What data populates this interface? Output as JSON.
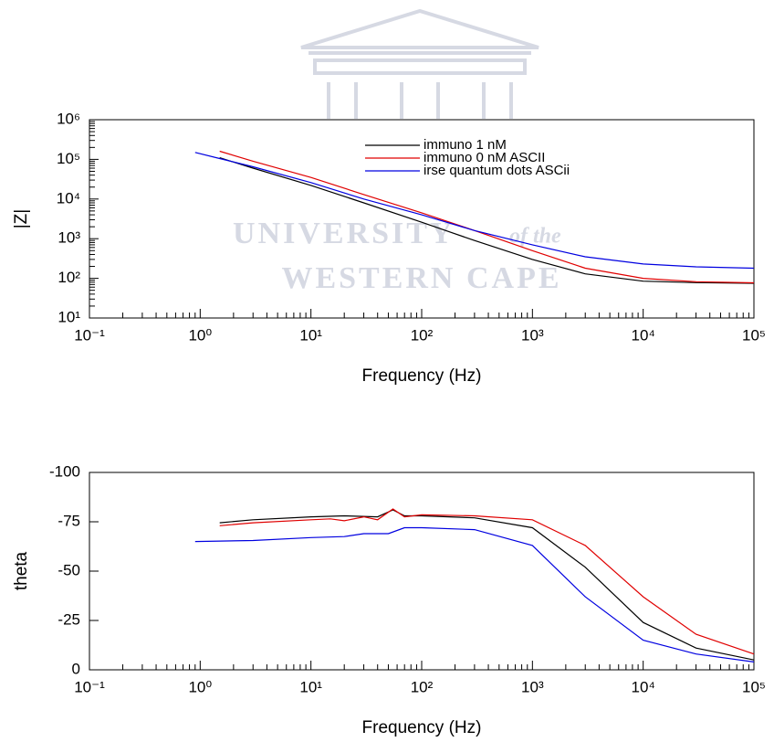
{
  "chart_data": [
    {
      "type": "line",
      "xlabel": "Frequency (Hz)",
      "ylabel": "|Z|",
      "xlog": true,
      "ylog": true,
      "legend": "upper center",
      "xlim": [
        0.1,
        100000
      ],
      "xticks": [
        {
          "value": 0.1,
          "label": "10⁻¹"
        },
        {
          "value": 1,
          "label": "10⁰"
        },
        {
          "value": 10,
          "label": "10¹"
        },
        {
          "value": 100,
          "label": "10²"
        },
        {
          "value": 1000,
          "label": "10³"
        },
        {
          "value": 10000,
          "label": "10⁴"
        },
        {
          "value": 100000,
          "label": "10⁵"
        }
      ],
      "ylim": [
        10,
        1000000
      ],
      "yticks": [
        {
          "value": 10,
          "label": "10¹"
        },
        {
          "value": 100,
          "label": "10²"
        },
        {
          "value": 1000,
          "label": "10³"
        },
        {
          "value": 10000,
          "label": "10⁴"
        },
        {
          "value": 100000,
          "label": "10⁵"
        },
        {
          "value": 1000000,
          "label": "10⁶"
        }
      ],
      "watermark": [
        "UNIVERSITY",
        "of the",
        "WESTERN CAPE"
      ],
      "series": [
        {
          "name": "immuno 1 nM",
          "color": "#000000",
          "x": [
            1.5,
            3,
            10,
            30,
            100,
            300,
            1000,
            3000,
            10000,
            30000,
            100000
          ],
          "values": [
            110000,
            60000,
            22000,
            8000,
            2600,
            900,
            300,
            130,
            85,
            78,
            75
          ]
        },
        {
          "name": "immuno 0 nM ASCII",
          "color": "#e00000",
          "x": [
            1.5,
            3,
            10,
            30,
            100,
            300,
            1000,
            3000,
            10000,
            30000,
            100000
          ],
          "values": [
            160000,
            90000,
            35000,
            13000,
            4500,
            1600,
            500,
            180,
            100,
            82,
            77
          ]
        },
        {
          "name": "irse quantum dots ASCii",
          "color": "#0000e0",
          "x": [
            0.9,
            1.5,
            3,
            10,
            30,
            100,
            300,
            1000,
            3000,
            10000,
            30000,
            100000
          ],
          "values": [
            150000,
            105000,
            65000,
            26000,
            10000,
            4000,
            1600,
            700,
            350,
            230,
            195,
            180
          ]
        }
      ]
    },
    {
      "type": "line",
      "xlabel": "Frequency (Hz)",
      "ylabel": "theta",
      "xlog": true,
      "ylog": false,
      "xlim": [
        0.1,
        100000
      ],
      "xticks": [
        {
          "value": 0.1,
          "label": "10⁻¹"
        },
        {
          "value": 1,
          "label": "10⁰"
        },
        {
          "value": 10,
          "label": "10¹"
        },
        {
          "value": 100,
          "label": "10²"
        },
        {
          "value": 1000,
          "label": "10³"
        },
        {
          "value": 10000,
          "label": "10⁴"
        },
        {
          "value": 100000,
          "label": "10⁵"
        }
      ],
      "ylim": [
        0,
        -100
      ],
      "yticks": [
        0,
        -25,
        -50,
        -75,
        -100
      ],
      "series": [
        {
          "color": "#000000",
          "x": [
            1.5,
            3,
            10,
            20,
            40,
            55,
            70,
            100,
            300,
            1000,
            3000,
            10000,
            30000,
            100000
          ],
          "values": [
            -74.5,
            -76,
            -77.5,
            -78,
            -77.5,
            -81,
            -78,
            -78,
            -77,
            -72,
            -52,
            -24,
            -11,
            -5
          ]
        },
        {
          "color": "#e00000",
          "x": [
            1.5,
            3,
            10,
            15,
            20,
            30,
            40,
            55,
            70,
            100,
            300,
            1000,
            3000,
            10000,
            30000,
            100000
          ],
          "values": [
            -73,
            -74.5,
            -76,
            -76.5,
            -75.5,
            -77.5,
            -76,
            -81.5,
            -77.5,
            -78.5,
            -78,
            -76,
            -63,
            -37,
            -18,
            -8
          ]
        },
        {
          "color": "#0000e0",
          "x": [
            0.9,
            3,
            10,
            20,
            30,
            50,
            70,
            100,
            300,
            1000,
            3000,
            10000,
            30000,
            100000
          ],
          "values": [
            -65,
            -65.5,
            -67,
            -67.5,
            -69,
            -69,
            -72,
            -72,
            -71,
            -63,
            -37,
            -15,
            -8,
            -4
          ]
        }
      ]
    }
  ]
}
